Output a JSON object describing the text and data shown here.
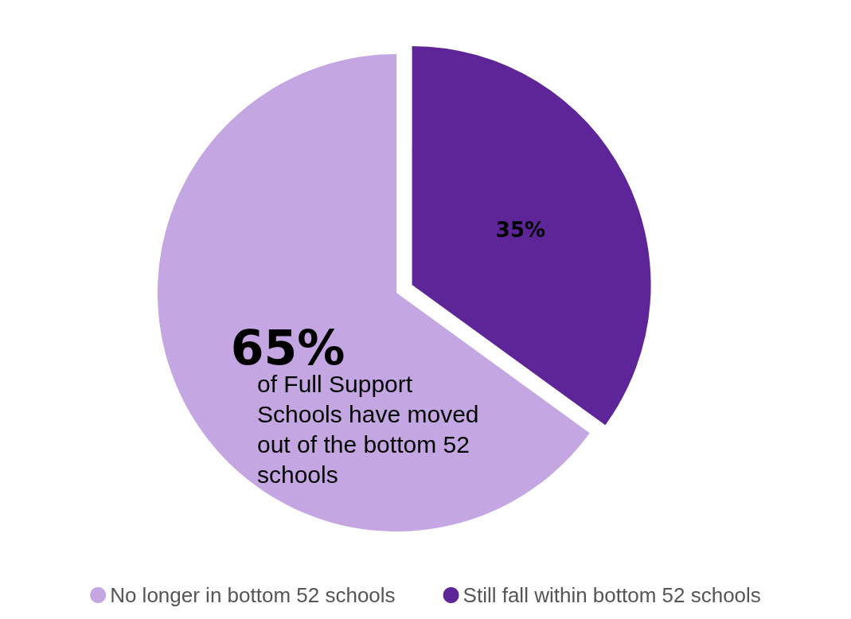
{
  "chart_data": {
    "type": "pie",
    "categories": [
      "No longer in bottom 52 schools",
      "Still fall within bottom 52 schools"
    ],
    "values": [
      65,
      35
    ],
    "colors": [
      "#c3a6e2",
      "#5e2599"
    ],
    "value_labels": [
      "65%",
      "35%"
    ],
    "legend": "bottom",
    "annotations": [
      "of Full Support Schools have moved out of the bottom 52 schools"
    ]
  }
}
